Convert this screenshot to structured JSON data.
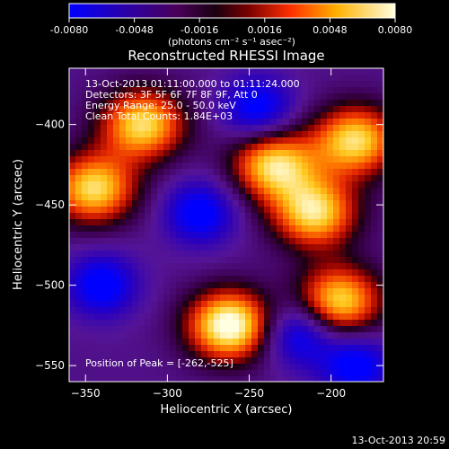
{
  "colorbar": {
    "ticks": [
      "-0.0080",
      "-0.0048",
      "-0.0016",
      "0.0016",
      "0.0048",
      "0.0080"
    ],
    "label": "(photons cm⁻² s⁻¹ asec⁻²)",
    "range": [
      -0.008,
      0.008
    ]
  },
  "chart_data": {
    "type": "heatmap",
    "title": "Reconstructed RHESSI Image",
    "xlabel": "Heliocentric X (arcsec)",
    "ylabel": "Heliocentric Y (arcsec)",
    "xlim": [
      -360,
      -168
    ],
    "ylim": [
      -560,
      -365
    ],
    "xticks": [
      -350,
      -300,
      -250,
      -200
    ],
    "yticks": [
      -400,
      -450,
      -500,
      -550
    ],
    "info_lines": [
      "13-Oct-2013 01:11:00.000 to 01:11:24.000",
      "Detectors: 3F 5F 6F 7F 8F 9F, Att 0",
      "Energy Range: 25.0 - 50.0 keV",
      "Clean    Total Counts: 1.84E+03"
    ],
    "peak_label": "Position of Peak = [-262,-525]",
    "peak": [
      -262,
      -525
    ],
    "bright_sources": [
      [
        -262,
        -525
      ],
      [
        -345,
        -440
      ],
      [
        -315,
        -400
      ],
      [
        -235,
        -425
      ],
      [
        -210,
        -455
      ],
      [
        -185,
        -410
      ],
      [
        -195,
        -510
      ]
    ],
    "dark_sources": [
      [
        -340,
        -500
      ],
      [
        -280,
        -455
      ],
      [
        -245,
        -390
      ],
      [
        -220,
        -530
      ],
      [
        -185,
        -550
      ]
    ]
  },
  "footer": {
    "timestamp": "13-Oct-2013 20:59"
  }
}
